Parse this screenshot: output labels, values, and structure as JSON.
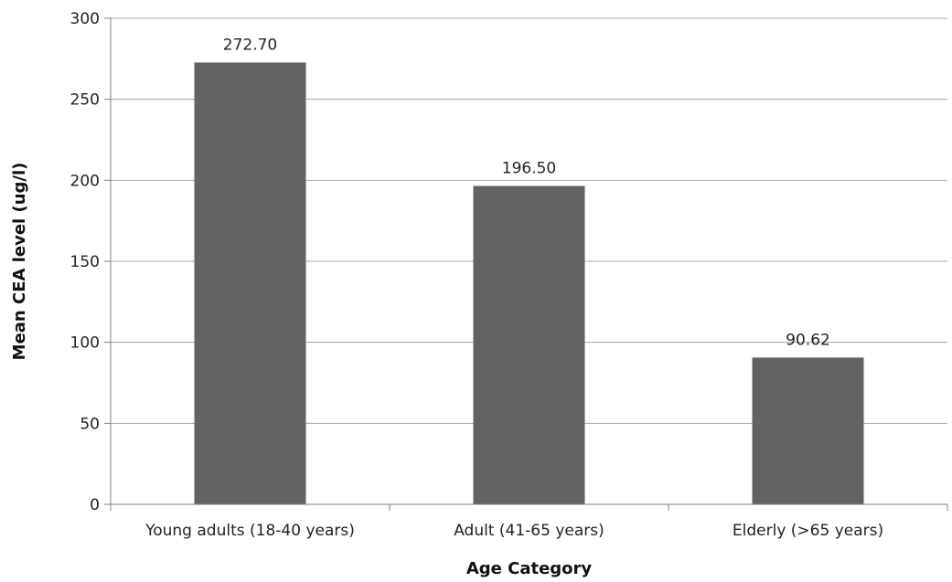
{
  "chart_data": {
    "type": "bar",
    "title": "",
    "xlabel": "Age Category",
    "ylabel": "Mean CEA level  (ug/l)",
    "categories": [
      "Young adults (18-40 years)",
      "Adult (41-65 years)",
      "Elderly (>65 years)"
    ],
    "values": [
      272.7,
      196.5,
      90.62
    ],
    "data_labels": [
      "272.70",
      "196.50",
      "90.62"
    ],
    "ylim": [
      0,
      300
    ],
    "yticks": [
      0,
      50,
      100,
      150,
      200,
      250,
      300
    ],
    "ytick_labels": [
      "0",
      "50",
      "100",
      "150",
      "200",
      "250",
      "300"
    ],
    "grid": "horizontal",
    "legend": "none",
    "colors": {
      "bar": "#636363",
      "grid": "#a6a6a6",
      "axis": "#808080"
    }
  }
}
